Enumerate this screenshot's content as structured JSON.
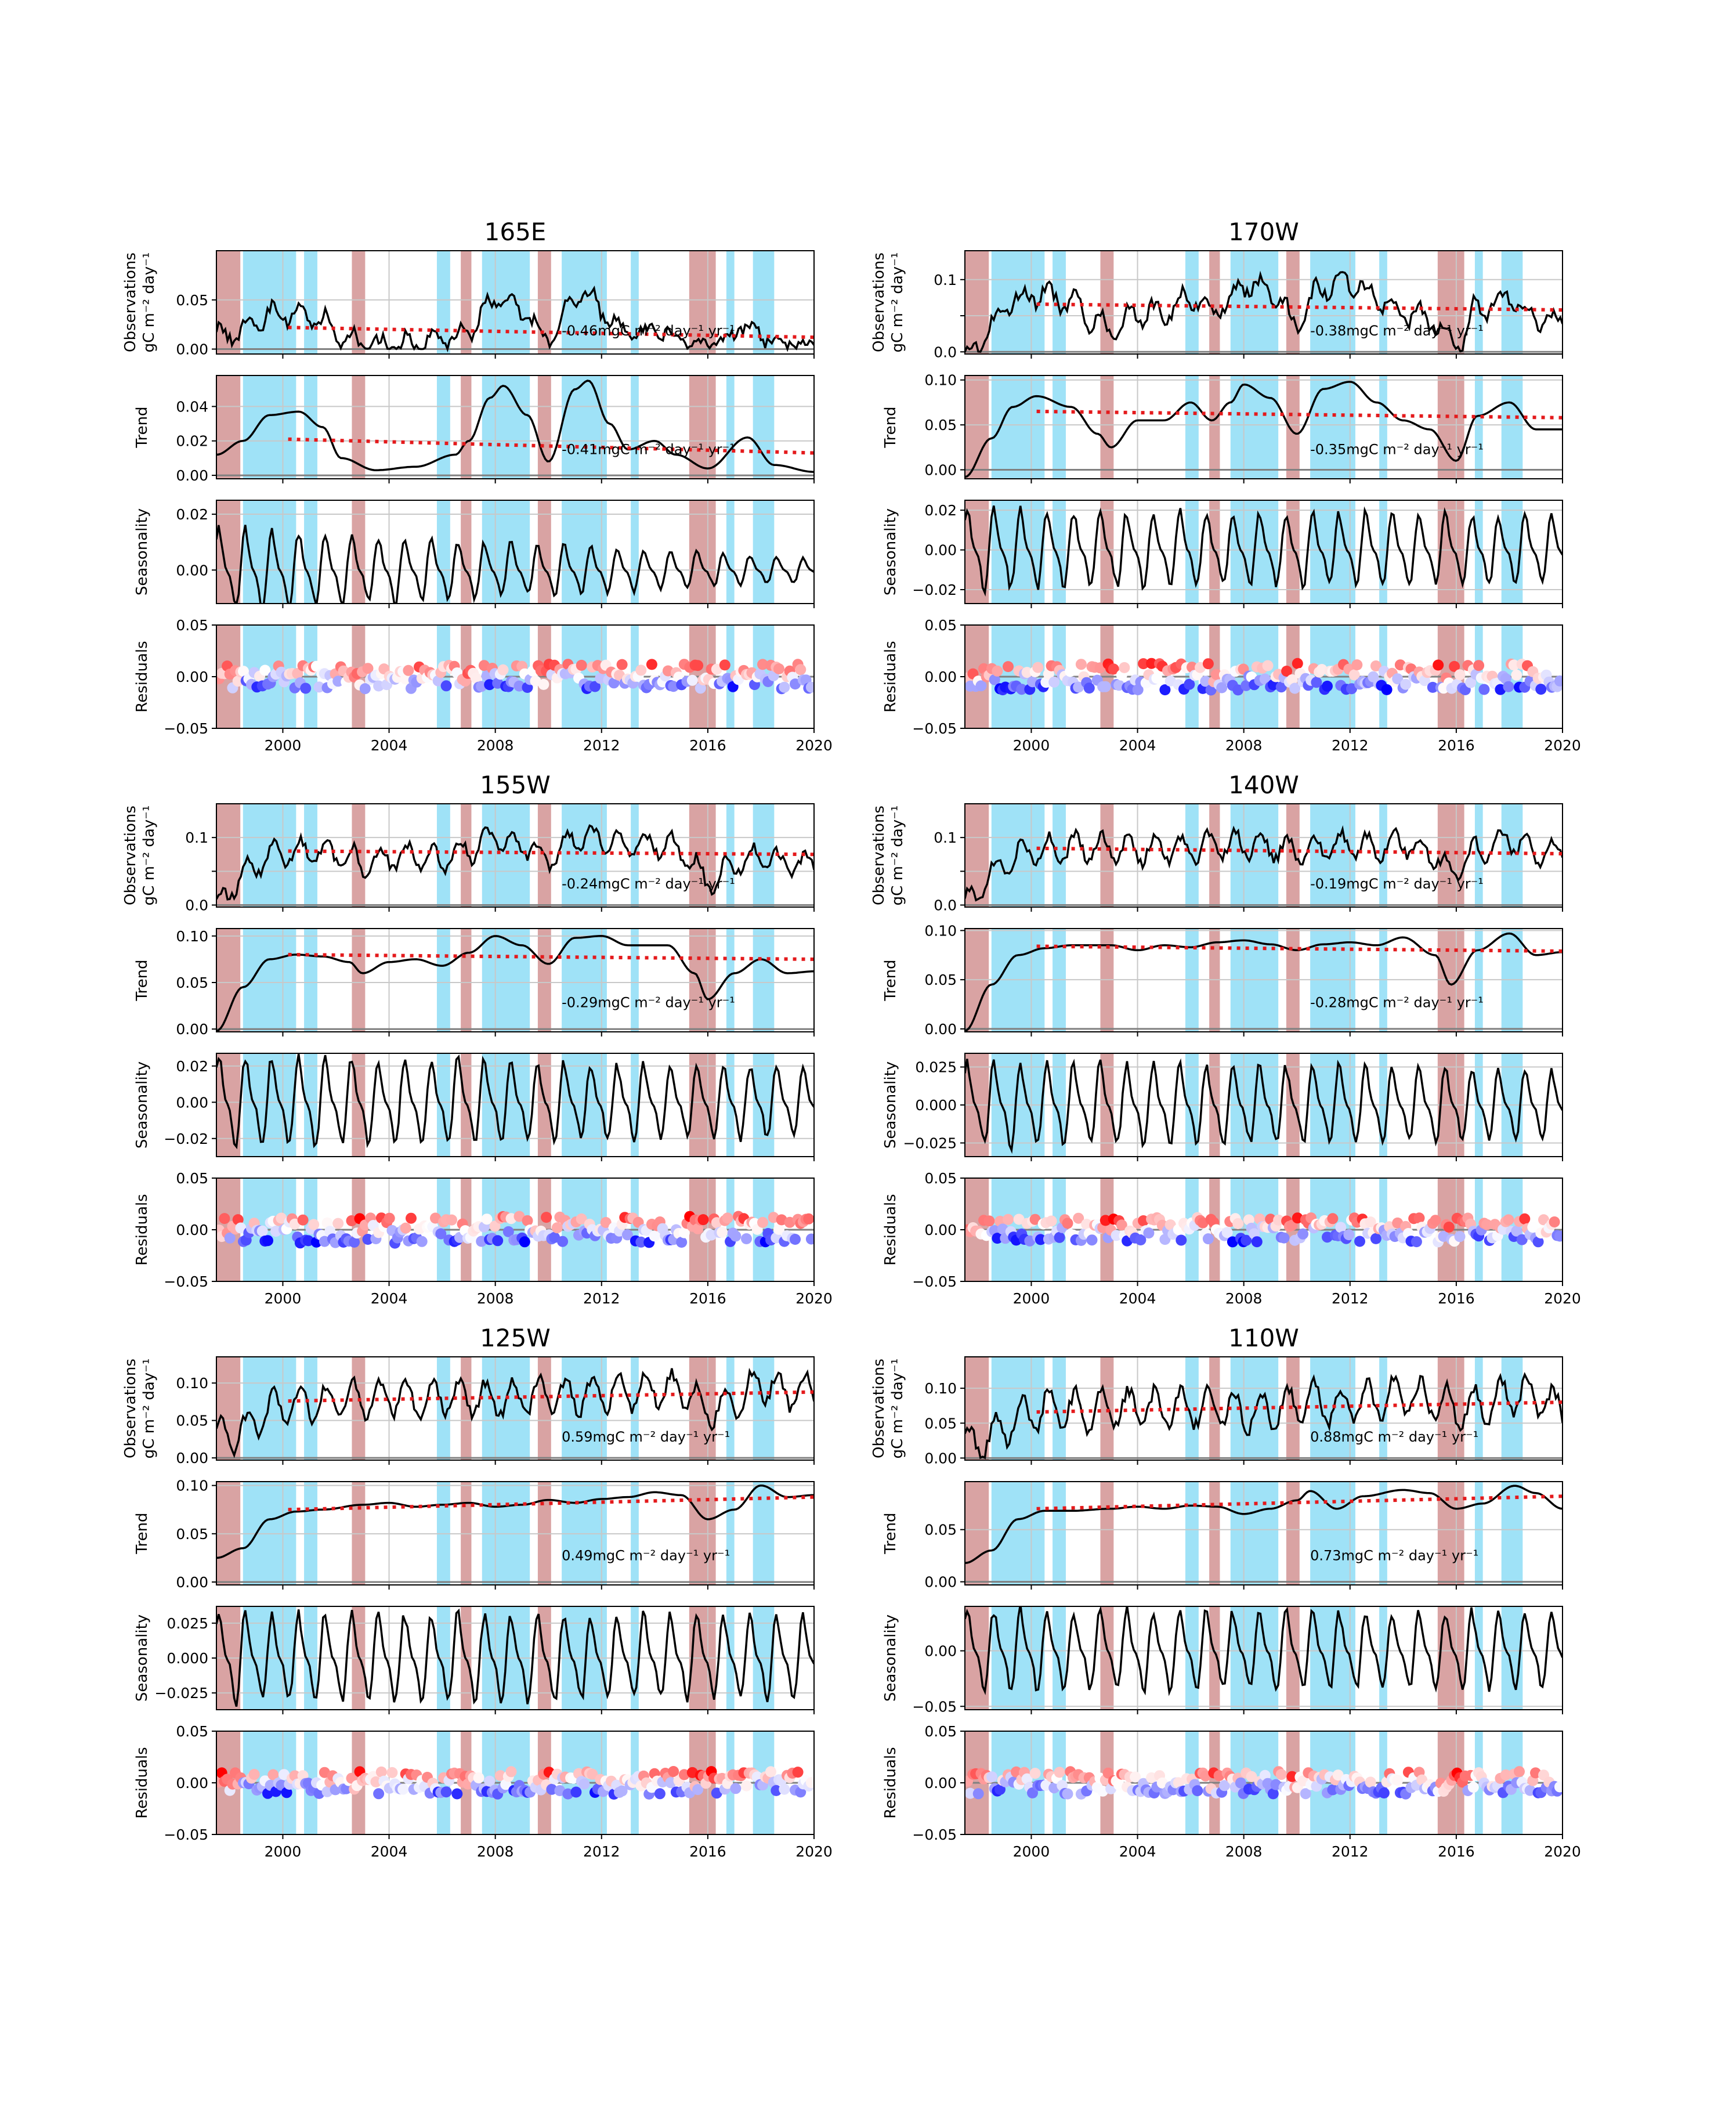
{
  "figure": {
    "colors": {
      "elnino": "#d9a3a3",
      "lanina": "#9fe2f7",
      "line": "#000000",
      "trendfit": "#e41a1c",
      "zero": "#808080",
      "grid": "#c8c8c8",
      "res_neg": "#0000ff",
      "res_pos": "#ff0000"
    },
    "xlim": [
      1997.5,
      2020.0
    ],
    "xticks": [
      2000,
      2004,
      2008,
      2012,
      2016,
      2020
    ],
    "xtick_labels": [
      "2000",
      "2004",
      "2008",
      "2012",
      "2016",
      "2020"
    ],
    "elnino_periods": [
      [
        1997.5,
        1998.4
      ],
      [
        2002.6,
        2003.1
      ],
      [
        2006.7,
        2007.1
      ],
      [
        2009.6,
        2010.1
      ],
      [
        2015.3,
        2016.3
      ]
    ],
    "lanina_periods": [
      [
        1998.5,
        2000.5
      ],
      [
        2000.8,
        2001.3
      ],
      [
        2005.8,
        2006.3
      ],
      [
        2007.5,
        2009.3
      ],
      [
        2010.5,
        2012.2
      ],
      [
        2016.7,
        2017.0
      ],
      [
        2017.7,
        2018.5
      ],
      [
        2013.1,
        2013.4
      ]
    ],
    "row_labels": {
      "observations": [
        "Observations",
        "gC m⁻² day⁻¹"
      ],
      "trend": "Trend",
      "seasonality": "Seasonality",
      "residuals": "Residuals"
    }
  },
  "chart_data": [
    {
      "type": "line",
      "title": "165E",
      "obs_ylim": [
        -0.005,
        0.1
      ],
      "obs_yticks": [
        0.0,
        0.05
      ],
      "obs_ytick_labels": [
        "0.00",
        "0.05"
      ],
      "obs_level": 0.018,
      "obs_amp": 0.02,
      "obs_fit": [
        0.022,
        0.012
      ],
      "obs_annotation": "-0.46mgC m⁻² day⁻¹ yr⁻¹",
      "trend_ylim": [
        -0.002,
        0.058
      ],
      "trend_yticks": [
        0.0,
        0.02,
        0.04
      ],
      "trend_ytick_labels": [
        "0.00",
        "0.02",
        "0.04"
      ],
      "trend_knots": [
        [
          1997.5,
          0.012
        ],
        [
          1998.5,
          0.02
        ],
        [
          1999.5,
          0.035
        ],
        [
          2000.6,
          0.037
        ],
        [
          2001.5,
          0.028
        ],
        [
          2002.2,
          0.01
        ],
        [
          2003.5,
          0.003
        ],
        [
          2005,
          0.005
        ],
        [
          2006.5,
          0.012
        ],
        [
          2007.0,
          0.02
        ],
        [
          2007.8,
          0.045
        ],
        [
          2008.3,
          0.052
        ],
        [
          2009.2,
          0.035
        ],
        [
          2010.0,
          0.008
        ],
        [
          2011.0,
          0.05
        ],
        [
          2011.5,
          0.055
        ],
        [
          2012.3,
          0.03
        ],
        [
          2013.0,
          0.015
        ],
        [
          2014.0,
          0.02
        ],
        [
          2014.8,
          0.012
        ],
        [
          2016,
          0.004
        ],
        [
          2017.5,
          0.022
        ],
        [
          2018.5,
          0.006
        ],
        [
          2020,
          0.002
        ]
      ],
      "trend_fit": [
        0.021,
        0.013
      ],
      "trend_annotation": "-0.41mgC m⁻² day⁻¹ yr⁻¹",
      "seas_ylim": [
        -0.012,
        0.025
      ],
      "seas_yticks": [
        0.0,
        0.02
      ],
      "seas_ytick_labels": [
        "0.00",
        "0.02"
      ],
      "seas_amp": [
        0.014,
        0.004
      ],
      "res_ylim": [
        -0.05,
        0.05
      ],
      "res_yticks": [
        -0.05,
        0.0,
        0.05
      ],
      "res_ytick_labels": [
        "−0.05",
        "0.00",
        "0.05"
      ],
      "res_spread": 0.012,
      "seed": 11
    },
    {
      "type": "line",
      "title": "170W",
      "obs_ylim": [
        -0.003,
        0.14
      ],
      "obs_yticks": [
        0.0,
        0.05,
        0.1
      ],
      "obs_ytick_labels": [
        "0.0",
        "",
        "0.1"
      ],
      "obs_level": 0.07,
      "obs_amp": 0.03,
      "obs_fit": [
        0.066,
        0.058
      ],
      "obs_annotation": "-0.38mgC m⁻² day⁻¹ yr⁻¹",
      "trend_ylim": [
        -0.01,
        0.105
      ],
      "trend_yticks": [
        0.0,
        0.05,
        0.1
      ],
      "trend_ytick_labels": [
        "0.00",
        "0.05",
        "0.10"
      ],
      "trend_knots": [
        [
          1997.5,
          -0.008
        ],
        [
          1998.5,
          0.035
        ],
        [
          1999.3,
          0.07
        ],
        [
          2000.2,
          0.082
        ],
        [
          2001.5,
          0.07
        ],
        [
          2002.5,
          0.04
        ],
        [
          2003.0,
          0.025
        ],
        [
          2004.0,
          0.055
        ],
        [
          2005.0,
          0.055
        ],
        [
          2006.0,
          0.075
        ],
        [
          2006.8,
          0.055
        ],
        [
          2007.5,
          0.075
        ],
        [
          2008.0,
          0.095
        ],
        [
          2009.0,
          0.08
        ],
        [
          2010.0,
          0.04
        ],
        [
          2011.0,
          0.09
        ],
        [
          2012.0,
          0.098
        ],
        [
          2013.0,
          0.075
        ],
        [
          2014.0,
          0.055
        ],
        [
          2015.0,
          0.045
        ],
        [
          2016.0,
          0.01
        ],
        [
          2016.8,
          0.06
        ],
        [
          2018.0,
          0.075
        ],
        [
          2019.0,
          0.045
        ],
        [
          2020,
          0.045
        ]
      ],
      "trend_fit": [
        0.065,
        0.058
      ],
      "trend_annotation": "-0.35mgC m⁻² day⁻¹ yr⁻¹",
      "seas_ylim": [
        -0.027,
        0.025
      ],
      "seas_yticks": [
        -0.02,
        0.0,
        0.02
      ],
      "seas_ytick_labels": [
        "−0.02",
        "0.00",
        "0.02"
      ],
      "seas_amp": [
        0.019,
        0.016
      ],
      "res_ylim": [
        -0.05,
        0.05
      ],
      "res_yticks": [
        -0.05,
        0.0,
        0.05
      ],
      "res_ytick_labels": [
        "−0.05",
        "0.00",
        "0.05"
      ],
      "res_spread": 0.013,
      "seed": 23
    },
    {
      "type": "line",
      "title": "155W",
      "obs_ylim": [
        -0.003,
        0.15
      ],
      "obs_yticks": [
        0.0,
        0.05,
        0.1
      ],
      "obs_ytick_labels": [
        "0.0",
        "",
        "0.1"
      ],
      "obs_level": 0.08,
      "obs_amp": 0.025,
      "obs_fit": [
        0.08,
        0.075
      ],
      "obs_annotation": "-0.24mgC m⁻² day⁻¹ yr⁻¹",
      "trend_ylim": [
        -0.003,
        0.108
      ],
      "trend_yticks": [
        0.0,
        0.05,
        0.1
      ],
      "trend_ytick_labels": [
        "0.00",
        "0.05",
        "0.10"
      ],
      "trend_knots": [
        [
          1997.5,
          -0.002
        ],
        [
          1998.5,
          0.045
        ],
        [
          1999.5,
          0.075
        ],
        [
          2000.5,
          0.08
        ],
        [
          2001.5,
          0.078
        ],
        [
          2002.5,
          0.072
        ],
        [
          2003.0,
          0.06
        ],
        [
          2004.0,
          0.072
        ],
        [
          2005.0,
          0.075
        ],
        [
          2006.0,
          0.068
        ],
        [
          2007.0,
          0.082
        ],
        [
          2008.0,
          0.1
        ],
        [
          2009.0,
          0.09
        ],
        [
          2010.0,
          0.07
        ],
        [
          2011.0,
          0.098
        ],
        [
          2012.0,
          0.1
        ],
        [
          2013.0,
          0.09
        ],
        [
          2014.5,
          0.09
        ],
        [
          2015.5,
          0.06
        ],
        [
          2016.0,
          0.032
        ],
        [
          2017.0,
          0.06
        ],
        [
          2018.0,
          0.075
        ],
        [
          2019.0,
          0.06
        ],
        [
          2020,
          0.062
        ]
      ],
      "trend_fit": [
        0.08,
        0.075
      ],
      "trend_annotation": "-0.29mgC m⁻² day⁻¹ yr⁻¹",
      "seas_ylim": [
        -0.03,
        0.027
      ],
      "seas_yticks": [
        -0.02,
        0.0,
        0.02
      ],
      "seas_ytick_labels": [
        "−0.02",
        "0.00",
        "0.02"
      ],
      "seas_amp": [
        0.024,
        0.018
      ],
      "res_ylim": [
        -0.05,
        0.05
      ],
      "res_yticks": [
        -0.05,
        0.0,
        0.05
      ],
      "res_ytick_labels": [
        "−0.05",
        "0.00",
        "0.05"
      ],
      "res_spread": 0.013,
      "seed": 37
    },
    {
      "type": "line",
      "title": "140W",
      "obs_ylim": [
        -0.003,
        0.15
      ],
      "obs_yticks": [
        0.0,
        0.05,
        0.1
      ],
      "obs_ytick_labels": [
        "0.0",
        "",
        "0.1"
      ],
      "obs_level": 0.082,
      "obs_amp": 0.025,
      "obs_fit": [
        0.084,
        0.076
      ],
      "obs_annotation": "-0.19mgC m⁻² day⁻¹ yr⁻¹",
      "trend_ylim": [
        -0.003,
        0.102
      ],
      "trend_yticks": [
        0.0,
        0.05,
        0.1
      ],
      "trend_ytick_labels": [
        "0.00",
        "0.05",
        "0.10"
      ],
      "trend_knots": [
        [
          1997.5,
          -0.002
        ],
        [
          1998.5,
          0.045
        ],
        [
          1999.5,
          0.075
        ],
        [
          2000.5,
          0.082
        ],
        [
          2001.5,
          0.085
        ],
        [
          2003.0,
          0.085
        ],
        [
          2004.0,
          0.08
        ],
        [
          2005.0,
          0.085
        ],
        [
          2006.0,
          0.083
        ],
        [
          2007.0,
          0.088
        ],
        [
          2008.0,
          0.09
        ],
        [
          2009.0,
          0.086
        ],
        [
          2010.0,
          0.08
        ],
        [
          2011.0,
          0.086
        ],
        [
          2012.0,
          0.088
        ],
        [
          2013.0,
          0.085
        ],
        [
          2014.0,
          0.093
        ],
        [
          2015.2,
          0.075
        ],
        [
          2015.8,
          0.045
        ],
        [
          2016.8,
          0.08
        ],
        [
          2018.0,
          0.097
        ],
        [
          2019.0,
          0.075
        ],
        [
          2020,
          0.078
        ]
      ],
      "trend_fit": [
        0.084,
        0.079
      ],
      "trend_annotation": "-0.28mgC m⁻² day⁻¹ yr⁻¹",
      "seas_ylim": [
        -0.034,
        0.034
      ],
      "seas_yticks": [
        -0.025,
        0.0,
        0.025
      ],
      "seas_ytick_labels": [
        "−0.025",
        "0.000",
        "0.025"
      ],
      "seas_amp": [
        0.026,
        0.022
      ],
      "res_ylim": [
        -0.05,
        0.05
      ],
      "res_yticks": [
        -0.05,
        0.0,
        0.05
      ],
      "res_ytick_labels": [
        "−0.05",
        "0.00",
        "0.05"
      ],
      "res_spread": 0.012,
      "seed": 41
    },
    {
      "type": "line",
      "title": "125W",
      "obs_ylim": [
        -0.003,
        0.135
      ],
      "obs_yticks": [
        0.0,
        0.05,
        0.1
      ],
      "obs_ytick_labels": [
        "0.00",
        "0.05",
        "0.10"
      ],
      "obs_level": 0.085,
      "obs_amp": 0.025,
      "obs_fit": [
        0.076,
        0.088
      ],
      "obs_annotation": "0.59mgC m⁻² day⁻¹ yr⁻¹",
      "trend_ylim": [
        -0.003,
        0.104
      ],
      "trend_yticks": [
        0.0,
        0.05,
        0.1
      ],
      "trend_ytick_labels": [
        "0.00",
        "0.05",
        "0.10"
      ],
      "trend_knots": [
        [
          1997.5,
          0.025
        ],
        [
          1998.5,
          0.035
        ],
        [
          1999.5,
          0.065
        ],
        [
          2000.5,
          0.073
        ],
        [
          2001.5,
          0.075
        ],
        [
          2003.0,
          0.08
        ],
        [
          2004.0,
          0.082
        ],
        [
          2005.0,
          0.078
        ],
        [
          2006.0,
          0.08
        ],
        [
          2007.0,
          0.082
        ],
        [
          2008.0,
          0.078
        ],
        [
          2009.0,
          0.08
        ],
        [
          2010.0,
          0.085
        ],
        [
          2011.0,
          0.082
        ],
        [
          2012.0,
          0.086
        ],
        [
          2013.0,
          0.088
        ],
        [
          2014.0,
          0.093
        ],
        [
          2015.0,
          0.09
        ],
        [
          2016.0,
          0.065
        ],
        [
          2017.0,
          0.075
        ],
        [
          2018.0,
          0.1
        ],
        [
          2019.0,
          0.088
        ],
        [
          2020,
          0.09
        ]
      ],
      "trend_fit": [
        0.075,
        0.088
      ],
      "trend_annotation": "0.49mgC m⁻² day⁻¹ yr⁻¹",
      "seas_ylim": [
        -0.037,
        0.037
      ],
      "seas_yticks": [
        -0.025,
        0.0,
        0.025
      ],
      "seas_ytick_labels": [
        "−0.025",
        "0.000",
        "0.025"
      ],
      "seas_amp": [
        0.03,
        0.028
      ],
      "res_ylim": [
        -0.05,
        0.05
      ],
      "res_yticks": [
        -0.05,
        0.0,
        0.05
      ],
      "res_ytick_labels": [
        "−0.05",
        "0.00",
        "0.05"
      ],
      "res_spread": 0.011,
      "seed": 53
    },
    {
      "type": "line",
      "title": "110W",
      "obs_ylim": [
        -0.003,
        0.145
      ],
      "obs_yticks": [
        0.0,
        0.05,
        0.1
      ],
      "obs_ytick_labels": [
        "0.00",
        "0.05",
        "0.10"
      ],
      "obs_level": 0.08,
      "obs_amp": 0.03,
      "obs_fit": [
        0.066,
        0.08
      ],
      "obs_annotation": "0.88mgC m⁻² day⁻¹ yr⁻¹",
      "trend_ylim": [
        -0.003,
        0.096
      ],
      "trend_yticks": [
        0.0,
        0.05
      ],
      "trend_ytick_labels": [
        "0.00",
        "0.05"
      ],
      "trend_knots": [
        [
          1997.5,
          0.018
        ],
        [
          1998.5,
          0.03
        ],
        [
          1999.5,
          0.06
        ],
        [
          2000.5,
          0.068
        ],
        [
          2001.5,
          0.068
        ],
        [
          2003.0,
          0.07
        ],
        [
          2004.0,
          0.072
        ],
        [
          2005.0,
          0.07
        ],
        [
          2006.0,
          0.073
        ],
        [
          2007.0,
          0.072
        ],
        [
          2008.0,
          0.065
        ],
        [
          2009.0,
          0.07
        ],
        [
          2010.0,
          0.078
        ],
        [
          2010.5,
          0.087
        ],
        [
          2011.5,
          0.07
        ],
        [
          2012.5,
          0.082
        ],
        [
          2014.0,
          0.088
        ],
        [
          2015.0,
          0.085
        ],
        [
          2016.0,
          0.07
        ],
        [
          2017.0,
          0.075
        ],
        [
          2018.2,
          0.092
        ],
        [
          2019.0,
          0.085
        ],
        [
          2020,
          0.07
        ]
      ],
      "trend_fit": [
        0.07,
        0.082
      ],
      "trend_annotation": "0.73mgC m⁻² day⁻¹ yr⁻¹",
      "seas_ylim": [
        -0.053,
        0.04
      ],
      "seas_yticks": [
        -0.05,
        0.0
      ],
      "seas_ytick_labels": [
        "−0.05",
        "0.00"
      ],
      "seas_amp": [
        0.035,
        0.032
      ],
      "res_ylim": [
        -0.05,
        0.05
      ],
      "res_yticks": [
        -0.05,
        0.0,
        0.05
      ],
      "res_ytick_labels": [
        "−0.05",
        "0.00",
        "0.05"
      ],
      "res_spread": 0.011,
      "seed": 67
    }
  ]
}
